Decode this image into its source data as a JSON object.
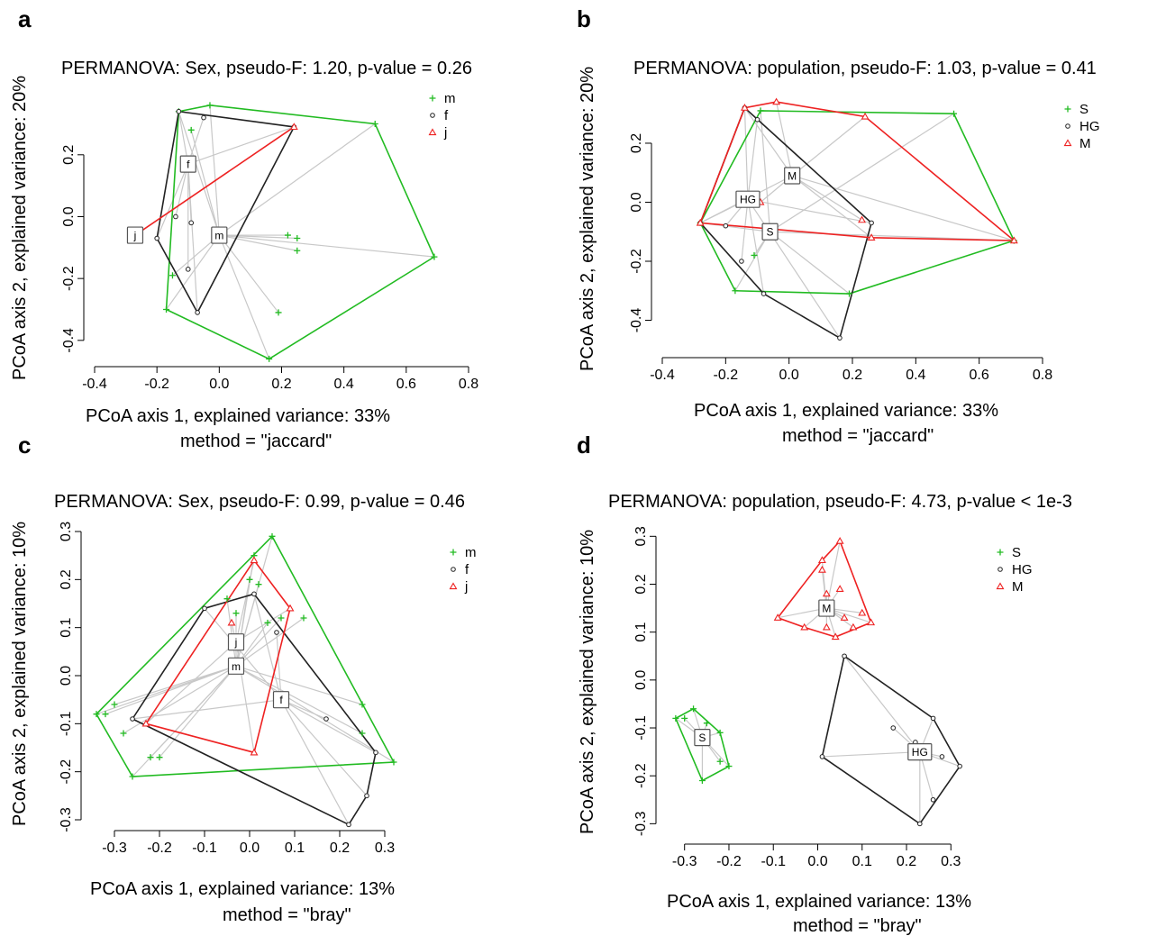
{
  "colors": {
    "green": "#22bb22",
    "black": "#222222",
    "red": "#ee2222",
    "spoke": "#c8c8c8"
  },
  "chart_data": [
    {
      "type": "scatter",
      "panel": "a",
      "title": "PERMANOVA: Sex, pseudo-F: 1.20, p-value = 0.26",
      "xlabel": "PCoA axis 1, explained variance: 33%",
      "ylabel": "PCoA axis 2, explained variance: 20%",
      "method": "method = \"jaccard\"",
      "xlim": [
        -0.4,
        0.8
      ],
      "ylim": [
        -0.45,
        0.38
      ],
      "xticks": [
        "-0.4",
        "-0.2",
        "0.0",
        "0.2",
        "0.4",
        "0.6",
        "0.8"
      ],
      "yticks": [
        "-0.4",
        "-0.2",
        "0.0",
        "0.2"
      ],
      "xtick_values": [
        -0.4,
        -0.2,
        0,
        0.2,
        0.4,
        0.6,
        0.8
      ],
      "ytick_values": [
        -0.4,
        -0.2,
        0,
        0.2
      ],
      "series": [
        {
          "name": "m",
          "symbol": "plus",
          "color": "#22bb22",
          "centroid": [
            0.0,
            -0.06
          ],
          "points": [
            [
              -0.13,
              0.34
            ],
            [
              -0.03,
              0.36
            ],
            [
              0.5,
              0.3
            ],
            [
              0.69,
              -0.13
            ],
            [
              0.16,
              -0.46
            ],
            [
              -0.17,
              -0.3
            ],
            [
              -0.09,
              0.28
            ],
            [
              -0.15,
              -0.19
            ],
            [
              0.22,
              -0.06
            ],
            [
              0.25,
              -0.07
            ],
            [
              0.25,
              -0.11
            ],
            [
              0.19,
              -0.31
            ]
          ]
        },
        {
          "name": "f",
          "symbol": "circle",
          "color": "#222222",
          "centroid": [
            -0.1,
            0.17
          ],
          "points": [
            [
              -0.13,
              0.34
            ],
            [
              -0.05,
              0.32
            ],
            [
              0.24,
              0.29
            ],
            [
              -0.07,
              -0.31
            ],
            [
              -0.2,
              -0.07
            ],
            [
              -0.14,
              0.0
            ],
            [
              -0.09,
              -0.02
            ],
            [
              -0.1,
              -0.17
            ]
          ]
        },
        {
          "name": "j",
          "symbol": "triangle",
          "color": "#ee2222",
          "centroid": [
            -0.27,
            -0.06
          ],
          "points": [
            [
              -0.27,
              -0.06
            ],
            [
              0.24,
              0.29
            ]
          ]
        }
      ]
    },
    {
      "type": "scatter",
      "panel": "b",
      "title": "PERMANOVA: population, pseudo-F: 1.03, p-value = 0.41",
      "xlabel": "PCoA axis 1, explained variance: 33%",
      "ylabel": "PCoA axis 2, explained variance: 20%",
      "method": "method = \"jaccard\"",
      "xlim": [
        -0.4,
        0.8
      ],
      "ylim": [
        -0.49,
        0.38
      ],
      "xticks": [
        "-0.4",
        "-0.2",
        "0.0",
        "0.2",
        "0.4",
        "0.6",
        "0.8"
      ],
      "yticks": [
        "-0.4",
        "-0.2",
        "0.0",
        "0.2"
      ],
      "xtick_values": [
        -0.4,
        -0.2,
        0,
        0.2,
        0.4,
        0.6,
        0.8
      ],
      "ytick_values": [
        -0.4,
        -0.2,
        0,
        0.2
      ],
      "series": [
        {
          "name": "S",
          "symbol": "plus",
          "color": "#22bb22",
          "centroid": [
            -0.06,
            -0.1
          ],
          "points": [
            [
              -0.28,
              -0.07
            ],
            [
              -0.09,
              0.31
            ],
            [
              0.52,
              0.3
            ],
            [
              0.71,
              -0.13
            ],
            [
              0.19,
              -0.31
            ],
            [
              -0.17,
              -0.3
            ],
            [
              -0.11,
              -0.18
            ]
          ]
        },
        {
          "name": "HG",
          "symbol": "circle",
          "color": "#222222",
          "centroid": [
            -0.13,
            0.01
          ],
          "points": [
            [
              -0.28,
              -0.07
            ],
            [
              -0.14,
              0.32
            ],
            [
              -0.1,
              0.28
            ],
            [
              0.26,
              -0.07
            ],
            [
              0.16,
              -0.46
            ],
            [
              -0.08,
              -0.31
            ],
            [
              -0.2,
              -0.08
            ],
            [
              -0.15,
              -0.2
            ]
          ]
        },
        {
          "name": "M",
          "symbol": "triangle",
          "color": "#ee2222",
          "centroid": [
            0.01,
            0.09
          ],
          "points": [
            [
              -0.28,
              -0.07
            ],
            [
              -0.14,
              0.32
            ],
            [
              -0.04,
              0.34
            ],
            [
              0.24,
              0.29
            ],
            [
              0.71,
              -0.13
            ],
            [
              0.26,
              -0.12
            ],
            [
              0.23,
              -0.06
            ],
            [
              -0.09,
              0.0
            ]
          ]
        }
      ]
    },
    {
      "type": "scatter",
      "panel": "c",
      "title": "PERMANOVA: Sex, pseudo-F: 0.99, p-value = 0.46",
      "xlabel": "PCoA axis 1, explained variance: 13%",
      "ylabel": "PCoA axis 2, explained variance: 10%",
      "method": "method = \"bray\"",
      "xlim": [
        -0.35,
        0.32
      ],
      "ylim": [
        -0.3,
        0.3
      ],
      "xticks": [
        "-0.3",
        "-0.2",
        "-0.1",
        "0.0",
        "0.1",
        "0.2",
        "0.3"
      ],
      "yticks": [
        "-0.3",
        "-0.2",
        "-0.1",
        "0.0",
        "0.1",
        "0.2",
        "0.3"
      ],
      "xtick_values": [
        -0.3,
        -0.2,
        -0.1,
        0,
        0.1,
        0.2,
        0.3
      ],
      "ytick_values": [
        -0.3,
        -0.2,
        -0.1,
        0,
        0.1,
        0.2,
        0.3
      ],
      "series": [
        {
          "name": "m",
          "symbol": "plus",
          "color": "#22bb22",
          "centroid": [
            -0.03,
            0.02
          ],
          "points": [
            [
              -0.34,
              -0.08
            ],
            [
              0.05,
              0.29
            ],
            [
              0.32,
              -0.18
            ],
            [
              -0.26,
              -0.21
            ],
            [
              -0.32,
              -0.08
            ],
            [
              -0.3,
              -0.06
            ],
            [
              -0.28,
              -0.12
            ],
            [
              -0.22,
              -0.17
            ],
            [
              -0.2,
              -0.17
            ],
            [
              -0.05,
              0.16
            ],
            [
              -0.03,
              0.13
            ],
            [
              0.0,
              0.2
            ],
            [
              0.01,
              0.25
            ],
            [
              0.02,
              0.19
            ],
            [
              0.04,
              0.11
            ],
            [
              0.07,
              0.12
            ],
            [
              0.12,
              0.12
            ],
            [
              0.25,
              -0.06
            ],
            [
              0.25,
              -0.12
            ]
          ]
        },
        {
          "name": "f",
          "symbol": "circle",
          "color": "#222222",
          "centroid": [
            0.07,
            -0.05
          ],
          "points": [
            [
              -0.26,
              -0.09
            ],
            [
              -0.1,
              0.14
            ],
            [
              0.01,
              0.17
            ],
            [
              0.28,
              -0.16
            ],
            [
              0.22,
              -0.31
            ],
            [
              0.26,
              -0.25
            ],
            [
              0.06,
              0.09
            ],
            [
              0.17,
              -0.09
            ]
          ]
        },
        {
          "name": "j",
          "symbol": "triangle",
          "color": "#ee2222",
          "centroid": [
            -0.03,
            0.07
          ],
          "points": [
            [
              -0.23,
              -0.1
            ],
            [
              0.01,
              -0.16
            ],
            [
              0.09,
              0.14
            ],
            [
              0.01,
              0.24
            ],
            [
              -0.04,
              0.11
            ]
          ]
        }
      ]
    },
    {
      "type": "scatter",
      "panel": "d",
      "title": "PERMANOVA: population, pseudo-F: 4.73, p-value < 1e-3",
      "xlabel": "PCoA axis 1, explained variance: 13%",
      "ylabel": "PCoA axis 2, explained variance: 10%",
      "method": "method = \"bray\"",
      "xlim": [
        -0.34,
        0.34
      ],
      "ylim": [
        -0.32,
        0.31
      ],
      "xticks": [
        "-0.3",
        "-0.2",
        "-0.1",
        "0.0",
        "0.1",
        "0.2",
        "0.3"
      ],
      "yticks": [
        "-0.3",
        "-0.2",
        "-0.1",
        "0.0",
        "0.1",
        "0.2",
        "0.3"
      ],
      "xtick_values": [
        -0.3,
        -0.2,
        -0.1,
        0,
        0.1,
        0.2,
        0.3
      ],
      "ytick_values": [
        -0.3,
        -0.2,
        -0.1,
        0,
        0.1,
        0.2,
        0.3
      ],
      "series": [
        {
          "name": "S",
          "symbol": "plus",
          "color": "#22bb22",
          "centroid": [
            -0.26,
            -0.12
          ],
          "points": [
            [
              -0.32,
              -0.08
            ],
            [
              -0.28,
              -0.06
            ],
            [
              -0.2,
              -0.18
            ],
            [
              -0.26,
              -0.21
            ],
            [
              -0.3,
              -0.08
            ],
            [
              -0.25,
              -0.09
            ],
            [
              -0.22,
              -0.11
            ],
            [
              -0.22,
              -0.17
            ]
          ]
        },
        {
          "name": "HG",
          "symbol": "circle",
          "color": "#222222",
          "centroid": [
            0.23,
            -0.15
          ],
          "points": [
            [
              0.06,
              0.05
            ],
            [
              0.26,
              -0.08
            ],
            [
              0.32,
              -0.18
            ],
            [
              0.23,
              -0.3
            ],
            [
              0.01,
              -0.16
            ],
            [
              0.17,
              -0.1
            ],
            [
              0.22,
              -0.13
            ],
            [
              0.28,
              -0.16
            ],
            [
              0.26,
              -0.25
            ],
            [
              0.24,
              -0.14
            ]
          ]
        },
        {
          "name": "M",
          "symbol": "triangle",
          "color": "#ee2222",
          "centroid": [
            0.02,
            0.15
          ],
          "points": [
            [
              -0.09,
              0.13
            ],
            [
              0.05,
              0.29
            ],
            [
              0.12,
              0.12
            ],
            [
              0.04,
              0.09
            ],
            [
              -0.03,
              0.11
            ],
            [
              0.01,
              0.25
            ],
            [
              0.01,
              0.23
            ],
            [
              0.02,
              0.18
            ],
            [
              0.05,
              0.19
            ],
            [
              0.06,
              0.13
            ],
            [
              0.08,
              0.11
            ],
            [
              0.1,
              0.14
            ],
            [
              0.02,
              0.11
            ]
          ]
        }
      ]
    }
  ]
}
